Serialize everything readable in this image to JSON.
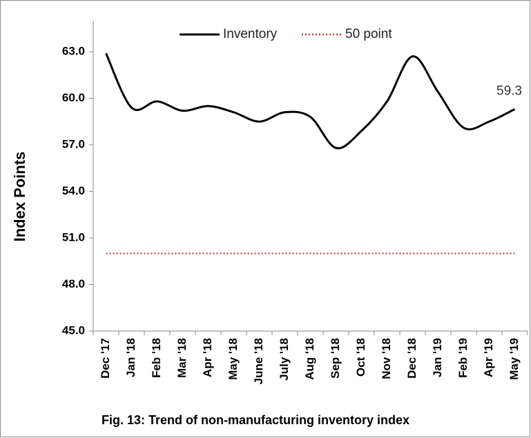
{
  "chart_data": {
    "type": "line",
    "caption": "Fig. 13: Trend of non-manufacturing inventory index",
    "y_label": "Index Points",
    "categories": [
      "Dec '17",
      "Jan '18",
      "Feb '18",
      "Mar '18",
      "Apr '18",
      "May '18",
      "June '18",
      "July '18",
      "Aug '18",
      "Sep '18",
      "Oct '18",
      "Nov '18",
      "Dec '18",
      "Jan '19",
      "Feb '19",
      "Apr '19",
      "May '19"
    ],
    "series": [
      {
        "name": "Inventory",
        "color": "#000000",
        "style": "solid",
        "values": [
          62.9,
          59.4,
          59.8,
          59.2,
          59.5,
          59.1,
          58.5,
          59.1,
          58.8,
          56.8,
          57.9,
          59.8,
          62.7,
          60.4,
          58.1,
          58.5,
          59.3
        ],
        "value_labels": [
          null,
          null,
          null,
          null,
          null,
          null,
          null,
          null,
          null,
          null,
          null,
          null,
          null,
          null,
          null,
          null,
          "59.3"
        ]
      },
      {
        "name": "50 point",
        "color": "#c0504d",
        "style": "dotted",
        "values": [
          50,
          50,
          50,
          50,
          50,
          50,
          50,
          50,
          50,
          50,
          50,
          50,
          50,
          50,
          50,
          50,
          50
        ]
      }
    ],
    "ylim": [
      45,
      65
    ],
    "yticks": [
      {
        "value": 45,
        "label": "45.0"
      },
      {
        "value": 48,
        "label": "48.0"
      },
      {
        "value": 51,
        "label": "51.0"
      },
      {
        "value": 54,
        "label": "54.0"
      },
      {
        "value": 57,
        "label": "57.0"
      },
      {
        "value": 60,
        "label": "60.0"
      },
      {
        "value": 63,
        "label": "63.0"
      }
    ],
    "legend": "top"
  }
}
